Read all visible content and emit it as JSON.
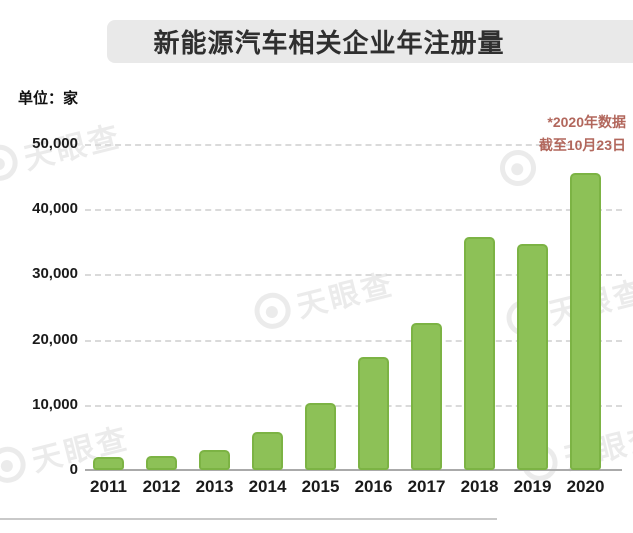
{
  "title": "新能源汽车相关企业年注册量",
  "unit_label": "单位：家",
  "annotation": {
    "line1": "*2020年数据",
    "line2": "截至10月23日"
  },
  "watermark": {
    "text": "天眼查"
  },
  "colors": {
    "bar_fill": "#8dc157",
    "bar_border": "#7cb344",
    "title_bar_bg": "#e9e9e9",
    "annotation_text": "#b2675c",
    "gridline": "#dadada",
    "axis_line": "#aaaaaa"
  },
  "chart_data": {
    "type": "bar",
    "title": "新能源汽车相关企业年注册量",
    "ylabel": "单位：家",
    "categories": [
      "2011",
      "2012",
      "2013",
      "2014",
      "2015",
      "2016",
      "2017",
      "2018",
      "2019",
      "2020"
    ],
    "values": [
      2000,
      2200,
      3100,
      5900,
      10200,
      17300,
      22600,
      35800,
      34700,
      45600
    ],
    "ylim": [
      0,
      50000
    ],
    "ytick_values": [
      0,
      10000,
      20000,
      30000,
      40000,
      50000
    ],
    "ytick_labels": [
      "0",
      "10,000",
      "20,000",
      "30,000",
      "40,000",
      "50,000"
    ],
    "grid": "horizontal-dashed",
    "legend": "none",
    "annotation": "*2020年数据 截至10月23日"
  }
}
